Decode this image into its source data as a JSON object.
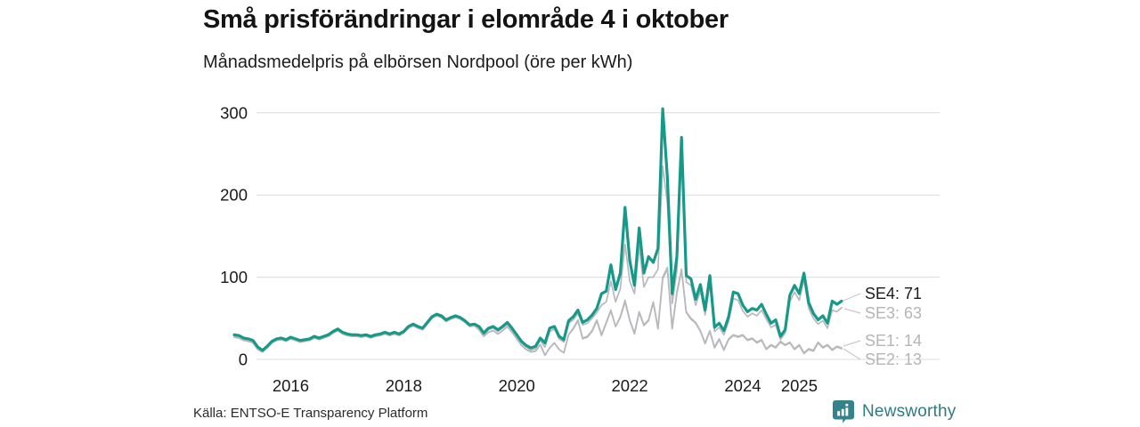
{
  "header": {
    "title": "Små prisförändringar i elområde 4 i oktober",
    "subtitle": "Månadsmedelpris på elbörsen Nordpool (öre per kWh)"
  },
  "footer": {
    "source": "Källa: ENTSO-E Transparency Platform",
    "brand": "Newsworthy",
    "brand_icon": "bar-chart-speech-bubble-icon"
  },
  "colors": {
    "accent_teal": "#17998a",
    "series_gray": "#b9b9bd",
    "grid": "#dcdcdc",
    "axis_text": "#1a1a1a",
    "end_label_dark": "#1a1a1a",
    "end_label_gray": "#b4b4b9",
    "leader": "#c9c9cc",
    "brand_teal": "#2e7b80"
  },
  "chart_data": {
    "type": "line",
    "title": "Små prisförändringar i elområde 4 i oktober",
    "subtitle": "Månadsmedelpris på elbörsen Nordpool (öre per kWh)",
    "unit": "öre per kWh",
    "x_start": "2015-01",
    "x_end": "2025-10",
    "x_frequency": "monthly",
    "x_ticks": [
      {
        "label": "2016",
        "month_index": 12
      },
      {
        "label": "2018",
        "month_index": 36
      },
      {
        "label": "2020",
        "month_index": 60
      },
      {
        "label": "2022",
        "month_index": 84
      },
      {
        "label": "2024",
        "month_index": 108
      },
      {
        "label": "2025",
        "month_index": 120
      }
    ],
    "y_ticks": [
      0,
      100,
      200,
      300
    ],
    "ylim": [
      0,
      310
    ],
    "grid": "horizontal-only",
    "legend": "end-of-line-labels",
    "series": [
      {
        "name": "SE4",
        "color": "#17998a",
        "stroke_width": 3.2,
        "end_label": "SE4: 71",
        "end_value": 71,
        "values": [
          30,
          29,
          26,
          25,
          23,
          15,
          11,
          16,
          22,
          25,
          26,
          24,
          27,
          25,
          23,
          24,
          25,
          28,
          26,
          28,
          30,
          34,
          37,
          33,
          31,
          30,
          30,
          29,
          30,
          28,
          30,
          31,
          33,
          31,
          33,
          31,
          34,
          40,
          43,
          40,
          38,
          45,
          52,
          55,
          53,
          48,
          51,
          53,
          51,
          47,
          42,
          43,
          40,
          32,
          38,
          40,
          36,
          40,
          45,
          38,
          30,
          22,
          17,
          14,
          16,
          26,
          20,
          38,
          40,
          28,
          24,
          47,
          52,
          60,
          45,
          48,
          54,
          62,
          80,
          83,
          115,
          85,
          105,
          185,
          120,
          90,
          160,
          105,
          125,
          118,
          135,
          305,
          220,
          80,
          125,
          270,
          102,
          98,
          73,
          91,
          60,
          102,
          39,
          44,
          35,
          52,
          82,
          80,
          66,
          58,
          62,
          60,
          67,
          55,
          44,
          48,
          28,
          36,
          78,
          90,
          80,
          105,
          69,
          56,
          48,
          53,
          44,
          71,
          67,
          71
        ]
      },
      {
        "name": "SE3",
        "color": "#b9b9bd",
        "stroke_width": 1.7,
        "end_label": "SE3: 63",
        "end_value": 63,
        "values": [
          28,
          27,
          24,
          23,
          21,
          13,
          10,
          15,
          21,
          24,
          25,
          23,
          26,
          24,
          22,
          23,
          24,
          27,
          25,
          27,
          29,
          33,
          36,
          32,
          30,
          29,
          29,
          28,
          29,
          27,
          29,
          30,
          32,
          30,
          32,
          30,
          33,
          39,
          42,
          39,
          37,
          44,
          51,
          54,
          52,
          47,
          50,
          52,
          50,
          46,
          41,
          42,
          38,
          30,
          36,
          38,
          34,
          38,
          43,
          36,
          28,
          20,
          15,
          11,
          13,
          23,
          15,
          34,
          37,
          25,
          21,
          44,
          48,
          56,
          42,
          44,
          50,
          57,
          66,
          70,
          95,
          70,
          86,
          140,
          95,
          80,
          138,
          88,
          100,
          100,
          110,
          235,
          190,
          68,
          108,
          260,
          94,
          90,
          66,
          83,
          54,
          92,
          34,
          39,
          30,
          46,
          74,
          72,
          59,
          52,
          56,
          53,
          60,
          49,
          39,
          42,
          24,
          32,
          70,
          82,
          72,
          97,
          62,
          50,
          43,
          47,
          38,
          60,
          58,
          63
        ]
      },
      {
        "name": "SE1",
        "color": "#b9b9bd",
        "stroke_width": 1.7,
        "end_label": "SE1: 14",
        "end_value": 14,
        "values": [
          27,
          26,
          23,
          22,
          20,
          12,
          9,
          14,
          20,
          23,
          24,
          22,
          25,
          23,
          21,
          22,
          23,
          26,
          24,
          26,
          28,
          32,
          35,
          31,
          29,
          28,
          28,
          27,
          28,
          26,
          28,
          29,
          31,
          29,
          31,
          29,
          32,
          38,
          41,
          38,
          36,
          43,
          50,
          53,
          51,
          46,
          49,
          51,
          49,
          45,
          40,
          41,
          36,
          28,
          33,
          35,
          31,
          35,
          40,
          33,
          25,
          17,
          12,
          9,
          10,
          18,
          5,
          14,
          20,
          12,
          8,
          30,
          38,
          48,
          26,
          28,
          35,
          48,
          30,
          45,
          60,
          40,
          52,
          72,
          48,
          32,
          58,
          42,
          48,
          70,
          38,
          100,
          112,
          38,
          82,
          110,
          58,
          50,
          45,
          35,
          20,
          35,
          15,
          25,
          12,
          25,
          30,
          28,
          30,
          24,
          26,
          21,
          24,
          13,
          18,
          15,
          22,
          18,
          21,
          13,
          18,
          8,
          13,
          11,
          21,
          15,
          18,
          12,
          16,
          14
        ]
      },
      {
        "name": "SE2",
        "color": "#b9b9bd",
        "stroke_width": 1.7,
        "end_label": "SE2: 13",
        "end_value": 13,
        "values": [
          27,
          26,
          23,
          22,
          20,
          12,
          9,
          14,
          20,
          23,
          24,
          22,
          25,
          23,
          21,
          22,
          23,
          26,
          24,
          26,
          28,
          32,
          35,
          31,
          29,
          28,
          28,
          27,
          28,
          26,
          28,
          29,
          31,
          29,
          31,
          29,
          32,
          38,
          41,
          38,
          36,
          43,
          50,
          53,
          51,
          46,
          49,
          51,
          49,
          45,
          40,
          41,
          36,
          28,
          33,
          35,
          31,
          35,
          40,
          33,
          25,
          17,
          12,
          9,
          10,
          18,
          5,
          14,
          20,
          12,
          8,
          30,
          37,
          47,
          25,
          27,
          34,
          47,
          29,
          44,
          59,
          40,
          51,
          70,
          47,
          31,
          57,
          41,
          47,
          69,
          37,
          98,
          110,
          37,
          80,
          108,
          57,
          49,
          44,
          34,
          19,
          34,
          14,
          24,
          11,
          24,
          29,
          27,
          29,
          23,
          25,
          20,
          23,
          12,
          17,
          14,
          21,
          17,
          20,
          12,
          17,
          7,
          12,
          10,
          20,
          14,
          17,
          11,
          15,
          13
        ]
      }
    ]
  }
}
